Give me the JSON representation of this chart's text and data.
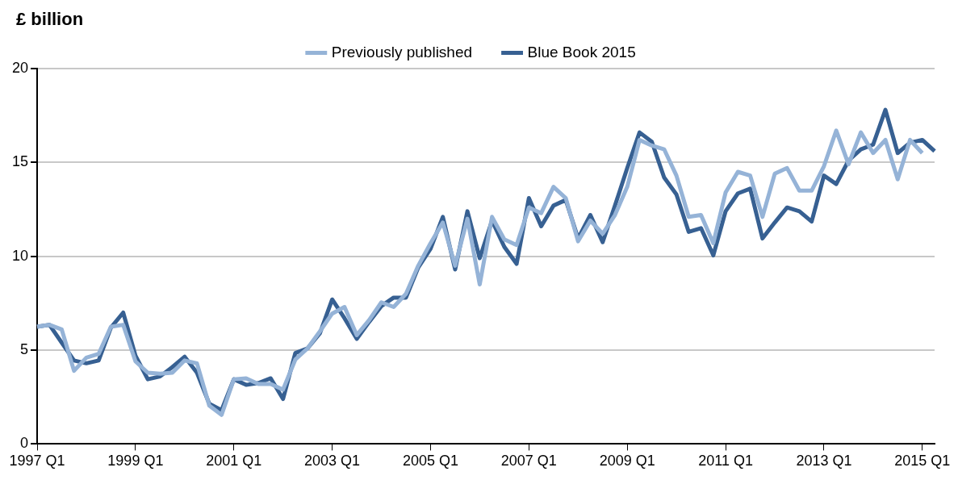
{
  "chart_data": {
    "type": "line",
    "ylabel": "£ billion",
    "categories": [
      "1997 Q1",
      null,
      null,
      null,
      null,
      null,
      null,
      null,
      "1999 Q1",
      null,
      null,
      null,
      null,
      null,
      null,
      null,
      "2001 Q1",
      null,
      null,
      null,
      null,
      null,
      null,
      null,
      "2003 Q1",
      null,
      null,
      null,
      null,
      null,
      null,
      null,
      "2005 Q1",
      null,
      null,
      null,
      null,
      null,
      null,
      null,
      "2007 Q1",
      null,
      null,
      null,
      null,
      null,
      null,
      null,
      "2009 Q1",
      null,
      null,
      null,
      null,
      null,
      null,
      null,
      "2011 Q1",
      null,
      null,
      null,
      null,
      null,
      null,
      null,
      "2013 Q1",
      null,
      null,
      null,
      null,
      null,
      null,
      null,
      "2015 Q1",
      null
    ],
    "series": [
      {
        "name": "Previously published",
        "color": "#95b3d7",
        "values": [
          6.25,
          6.35,
          6.1,
          3.9,
          4.6,
          4.8,
          6.25,
          6.35,
          4.4,
          3.8,
          3.75,
          3.8,
          4.45,
          4.3,
          2.05,
          1.55,
          3.45,
          3.5,
          3.2,
          3.2,
          2.9,
          4.5,
          5.1,
          6.0,
          6.95,
          7.3,
          5.8,
          6.6,
          7.55,
          7.3,
          8.0,
          9.5,
          10.7,
          11.8,
          9.5,
          12.0,
          8.5,
          12.1,
          10.9,
          10.6,
          12.6,
          12.3,
          13.7,
          13.1,
          10.8,
          11.9,
          11.2,
          12.2,
          13.7,
          16.2,
          15.9,
          15.7,
          14.3,
          12.1,
          12.2,
          10.7,
          13.4,
          14.5,
          14.3,
          12.1,
          14.4,
          14.7,
          13.5,
          13.5,
          14.8,
          16.7,
          14.9,
          16.6,
          15.5,
          16.2,
          14.1,
          16.2,
          15.5,
          null
        ]
      },
      {
        "name": "Blue Book 2015",
        "color": "#376092",
        "values": [
          6.25,
          6.35,
          5.4,
          4.45,
          4.3,
          4.45,
          6.2,
          7.0,
          4.7,
          3.45,
          3.6,
          4.1,
          4.65,
          3.8,
          2.15,
          1.8,
          3.45,
          3.15,
          3.25,
          3.5,
          2.4,
          4.85,
          5.1,
          5.9,
          7.7,
          6.7,
          5.6,
          6.5,
          7.35,
          7.8,
          7.8,
          9.4,
          10.4,
          12.1,
          9.3,
          12.4,
          9.9,
          11.9,
          10.5,
          9.6,
          13.1,
          11.6,
          12.7,
          13.0,
          10.95,
          12.2,
          10.75,
          12.7,
          14.7,
          16.6,
          16.1,
          14.2,
          13.3,
          11.3,
          11.5,
          10.05,
          12.4,
          13.35,
          13.6,
          10.95,
          11.8,
          12.6,
          12.4,
          11.85,
          14.3,
          13.85,
          15.1,
          15.7,
          15.95,
          17.8,
          15.5,
          16.05,
          16.2,
          15.6
        ]
      }
    ],
    "ylim": [
      0,
      20
    ],
    "yticks": [
      0,
      5,
      10,
      15,
      20
    ],
    "grid": "y",
    "legend": "top",
    "line_style": "solid",
    "marker": "none"
  }
}
